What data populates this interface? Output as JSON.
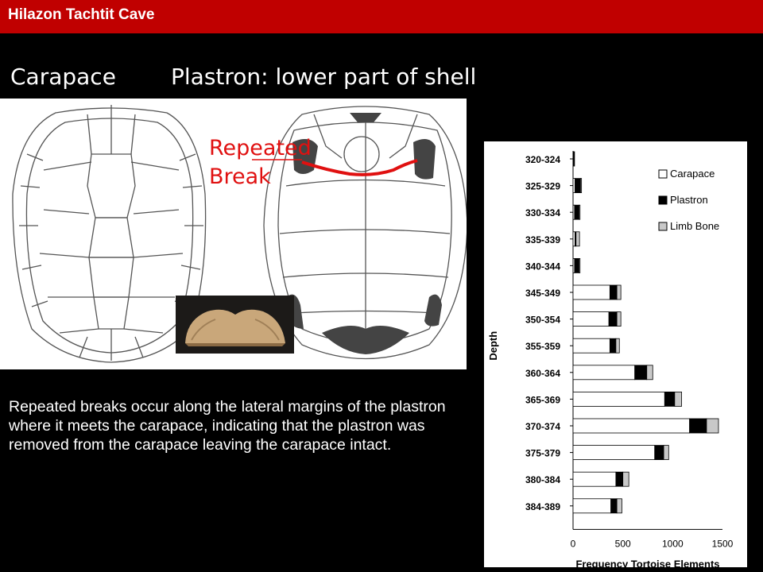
{
  "slide": {
    "title": "Hilazon Tachtit Cave",
    "heading_left": "Carapace",
    "heading_right": "Plastron: lower part of shell",
    "annotation_line1": "Repeated",
    "annotation_line2": "Break",
    "caption": "Repeated breaks occur along the lateral margins of the plastron where it meets the carapace, indicating that the plastron was removed from the carapace leaving the carapace intact.",
    "colors": {
      "title_bar": "#c00000",
      "annotation": "#e01010",
      "background": "#000000"
    }
  },
  "chart_data": {
    "type": "bar",
    "orientation": "horizontal",
    "stacked": true,
    "categories": [
      "320-324",
      "325-329",
      "330-334",
      "335-339",
      "340-344",
      "345-349",
      "350-354",
      "355-359",
      "360-364",
      "365-369",
      "370-374",
      "375-379",
      "380-384",
      "384-389"
    ],
    "series": [
      {
        "name": "Carapace",
        "color": "#ffffff",
        "values": [
          0,
          20,
          15,
          20,
          15,
          370,
          360,
          370,
          620,
          920,
          1170,
          820,
          430,
          380
        ]
      },
      {
        "name": "Plastron",
        "color": "#000000",
        "values": [
          10,
          55,
          45,
          10,
          45,
          70,
          80,
          60,
          120,
          100,
          170,
          90,
          70,
          60
        ]
      },
      {
        "name": "Limb Bone",
        "color": "#c8c8c8",
        "values": [
          5,
          10,
          10,
          35,
          10,
          40,
          40,
          35,
          60,
          70,
          120,
          50,
          60,
          50
        ]
      }
    ],
    "xticks": [
      "0",
      "500",
      "1000",
      "1500"
    ],
    "xlim": [
      0,
      1500
    ],
    "xlabel": "Frequency Tortoise Elements",
    "ylabel": "Depth",
    "legend_position": "top-right"
  }
}
